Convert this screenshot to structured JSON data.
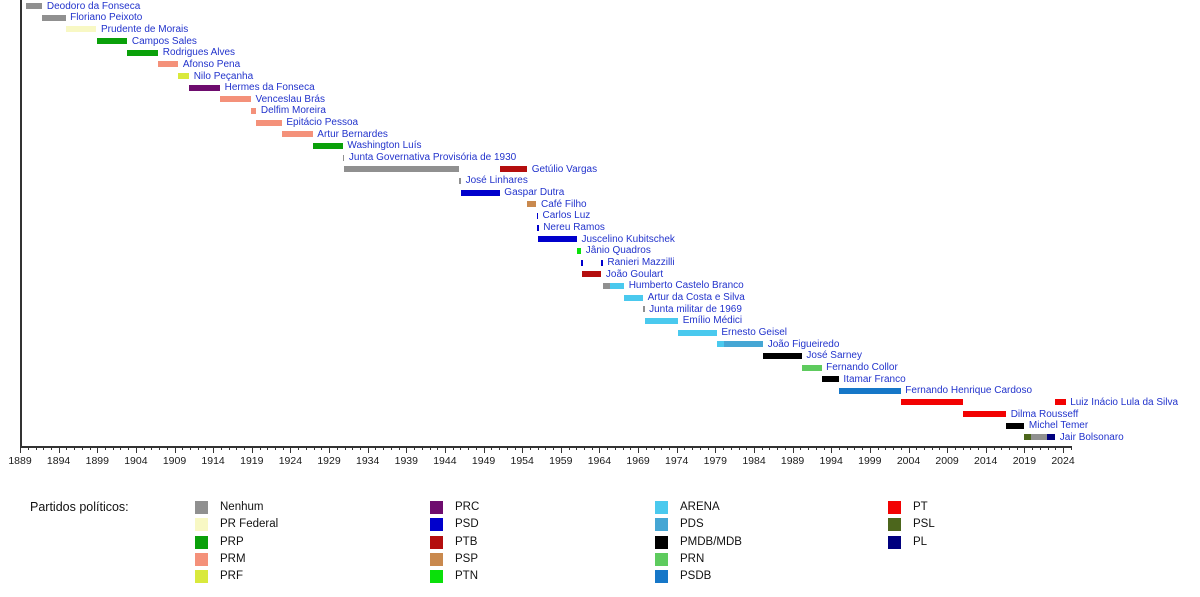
{
  "page": {
    "background": "#ffffff"
  },
  "legend": {
    "title": "Partidos políticos:",
    "columns": [
      [
        "Nenhum",
        "PR Federal",
        "PRP",
        "PRM",
        "PRF"
      ],
      [
        "PRC",
        "PSD",
        "PTB",
        "PSP",
        "PTN"
      ],
      [
        "ARENA",
        "PDS",
        "PMDB/MDB",
        "PRN",
        "PSDB"
      ],
      [
        "PT",
        "PSL",
        "PL"
      ]
    ]
  },
  "party_colors": {
    "Nenhum": "#909090",
    "PR Federal": "#f8f8c4",
    "PRP": "#0aa00a",
    "PRM": "#f4917a",
    "PRF": "#d9e93c",
    "PRC": "#6e0c6e",
    "PSD": "#0000cc",
    "PTB": "#b40e0e",
    "PSP": "#c9894e",
    "PTN": "#0ae00a",
    "ARENA": "#4ac9ee",
    "PDS": "#45a6d4",
    "PMDB/MDB": "#000000",
    "PRN": "#5ecb5e",
    "PSDB": "#1677c8",
    "PT": "#f20202",
    "PSL": "#4c661c",
    "PL": "#00007e"
  },
  "chart_data": {
    "type": "bar",
    "variant": "gantt-timeline",
    "title": "",
    "xlabel": "",
    "ylabel": "",
    "grid": false,
    "legend_position": "bottom",
    "x_axis": {
      "min": 1889,
      "max": 2025.5,
      "major_tick_step": 5,
      "minor_tick_step": 1,
      "tick_labels": [
        "1889",
        "1894",
        "1899",
        "1904",
        "1909",
        "1914",
        "1919",
        "1924",
        "1929",
        "1934",
        "1939",
        "1944",
        "1949",
        "1954",
        "1959",
        "1964",
        "1969",
        "1974",
        "1979",
        "1984",
        "1989",
        "1994",
        "1999",
        "2004",
        "2009",
        "2014",
        "2019",
        "2024"
      ]
    },
    "rows": [
      {
        "label": "Deodoro da Fonseca",
        "segments": [
          {
            "start": 1889.8,
            "end": 1891.9,
            "party": "Nenhum"
          }
        ]
      },
      {
        "label": "Floriano Peixoto",
        "segments": [
          {
            "start": 1891.9,
            "end": 1894.9,
            "party": "Nenhum"
          }
        ]
      },
      {
        "label": "Prudente de Morais",
        "segments": [
          {
            "start": 1894.9,
            "end": 1898.9,
            "party": "PR Federal"
          }
        ]
      },
      {
        "label": "Campos Sales",
        "segments": [
          {
            "start": 1898.9,
            "end": 1902.9,
            "party": "PRP"
          }
        ]
      },
      {
        "label": "Rodrigues Alves",
        "segments": [
          {
            "start": 1902.9,
            "end": 1906.9,
            "party": "PRP"
          }
        ]
      },
      {
        "label": "Afonso Pena",
        "segments": [
          {
            "start": 1906.9,
            "end": 1909.5,
            "party": "PRM"
          }
        ]
      },
      {
        "label": "Nilo Peçanha",
        "segments": [
          {
            "start": 1909.5,
            "end": 1910.9,
            "party": "PRF"
          }
        ]
      },
      {
        "label": "Hermes da Fonseca",
        "segments": [
          {
            "start": 1910.9,
            "end": 1914.9,
            "party": "PRC"
          }
        ]
      },
      {
        "label": "Venceslau Brás",
        "segments": [
          {
            "start": 1914.9,
            "end": 1918.9,
            "party": "PRM"
          }
        ]
      },
      {
        "label": "Delfim Moreira",
        "segments": [
          {
            "start": 1918.9,
            "end": 1919.6,
            "party": "PRM"
          }
        ]
      },
      {
        "label": "Epitácio Pessoa",
        "segments": [
          {
            "start": 1919.6,
            "end": 1922.9,
            "party": "PRM"
          }
        ]
      },
      {
        "label": "Artur Bernardes",
        "segments": [
          {
            "start": 1922.9,
            "end": 1926.9,
            "party": "PRM"
          }
        ]
      },
      {
        "label": "Washington Luís",
        "segments": [
          {
            "start": 1926.9,
            "end": 1930.8,
            "party": "PRP"
          }
        ]
      },
      {
        "label": "Junta Governativa Provisória de 1930",
        "segments": [
          {
            "start": 1930.8,
            "end": 1930.95,
            "party": "Nenhum"
          }
        ]
      },
      {
        "label": "Getúlio Vargas",
        "segments": [
          {
            "start": 1930.95,
            "end": 1945.8,
            "party": "Nenhum"
          },
          {
            "start": 1951.1,
            "end": 1954.65,
            "party": "PTB"
          }
        ]
      },
      {
        "label": "José Linhares",
        "segments": [
          {
            "start": 1945.8,
            "end": 1946.1,
            "party": "Nenhum"
          }
        ]
      },
      {
        "label": "Gaspar Dutra",
        "segments": [
          {
            "start": 1946.1,
            "end": 1951.1,
            "party": "PSD"
          }
        ]
      },
      {
        "label": "Café Filho",
        "segments": [
          {
            "start": 1954.65,
            "end": 1955.85,
            "party": "PSP"
          }
        ]
      },
      {
        "label": "Carlos Luz",
        "segments": [
          {
            "start": 1955.85,
            "end": 1955.95,
            "party": "PSD"
          }
        ]
      },
      {
        "label": "Nereu Ramos",
        "segments": [
          {
            "start": 1955.95,
            "end": 1956.1,
            "party": "PSD"
          }
        ]
      },
      {
        "label": "Juscelino Kubitschek",
        "segments": [
          {
            "start": 1956.1,
            "end": 1961.1,
            "party": "PSD"
          }
        ]
      },
      {
        "label": "Jânio Quadros",
        "segments": [
          {
            "start": 1961.1,
            "end": 1961.65,
            "party": "PTN"
          }
        ]
      },
      {
        "label": "Ranieri Mazzilli",
        "segments": [
          {
            "start": 1961.65,
            "end": 1961.8,
            "party": "PSD"
          },
          {
            "start": 1964.25,
            "end": 1964.4,
            "party": "PSD"
          }
        ]
      },
      {
        "label": "João Goulart",
        "segments": [
          {
            "start": 1961.8,
            "end": 1964.25,
            "party": "PTB"
          }
        ]
      },
      {
        "label": "Humberto Castelo Branco",
        "segments": [
          {
            "start": 1964.4,
            "end": 1965.4,
            "party": "Nenhum"
          },
          {
            "start": 1965.4,
            "end": 1967.2,
            "party": "ARENA"
          }
        ]
      },
      {
        "label": "Artur da Costa e Silva",
        "segments": [
          {
            "start": 1967.2,
            "end": 1969.65,
            "party": "ARENA"
          }
        ]
      },
      {
        "label": "Junta militar de 1969",
        "segments": [
          {
            "start": 1969.65,
            "end": 1969.85,
            "party": "Nenhum"
          }
        ]
      },
      {
        "label": "Emílio Médici",
        "segments": [
          {
            "start": 1969.85,
            "end": 1974.2,
            "party": "ARENA"
          }
        ]
      },
      {
        "label": "Ernesto Geisel",
        "segments": [
          {
            "start": 1974.2,
            "end": 1979.2,
            "party": "ARENA"
          }
        ]
      },
      {
        "label": "João Figueiredo",
        "segments": [
          {
            "start": 1979.2,
            "end": 1980.1,
            "party": "ARENA"
          },
          {
            "start": 1980.1,
            "end": 1985.2,
            "party": "PDS"
          }
        ]
      },
      {
        "label": "José Sarney",
        "segments": [
          {
            "start": 1985.2,
            "end": 1990.2,
            "party": "PMDB/MDB"
          }
        ]
      },
      {
        "label": "Fernando Collor",
        "segments": [
          {
            "start": 1990.2,
            "end": 1992.75,
            "party": "PRN"
          }
        ]
      },
      {
        "label": "Itamar Franco",
        "segments": [
          {
            "start": 1992.75,
            "end": 1995.0,
            "party": "PMDB/MDB"
          }
        ]
      },
      {
        "label": "Fernando Henrique Cardoso",
        "segments": [
          {
            "start": 1995.0,
            "end": 2003.0,
            "party": "PSDB"
          }
        ]
      },
      {
        "label": "Luiz Inácio Lula da Silva",
        "segments": [
          {
            "start": 2003.0,
            "end": 2011.0,
            "party": "PT"
          },
          {
            "start": 2023.0,
            "end": 2024.35,
            "party": "PT"
          }
        ]
      },
      {
        "label": "Dilma Rousseff",
        "segments": [
          {
            "start": 2011.0,
            "end": 2016.65,
            "party": "PT"
          }
        ]
      },
      {
        "label": "Michel Temer",
        "segments": [
          {
            "start": 2016.65,
            "end": 2019.0,
            "party": "PMDB/MDB"
          }
        ]
      },
      {
        "label": "Jair Bolsonaro",
        "segments": [
          {
            "start": 2019.0,
            "end": 2019.9,
            "party": "PSL"
          },
          {
            "start": 2019.9,
            "end": 2021.9,
            "party": "Nenhum"
          },
          {
            "start": 2021.9,
            "end": 2023.0,
            "party": "PL"
          }
        ]
      }
    ]
  }
}
